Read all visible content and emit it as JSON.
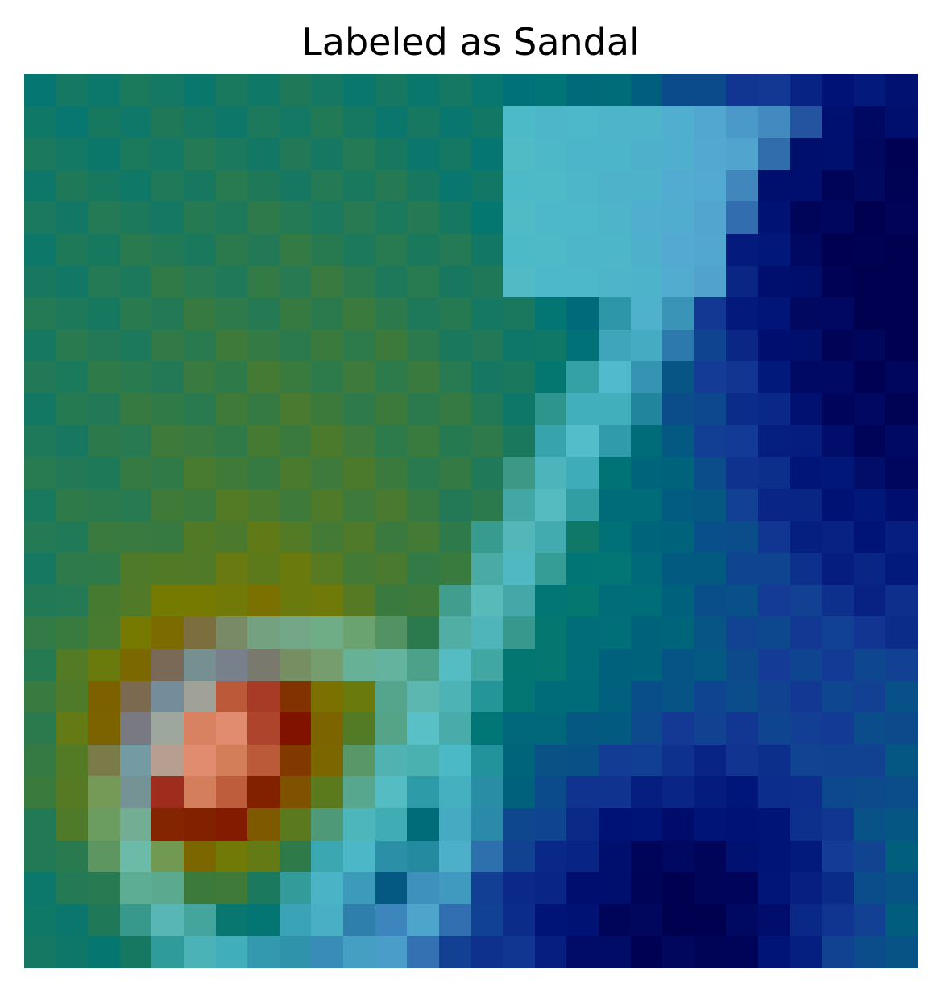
{
  "title": "Labeled as Sandal",
  "heatmap": {
    "grid": [
      28,
      28
    ],
    "colors": {
      "deep-navy": "#000050",
      "navy": "#00107a",
      "royal": "#2a55b0",
      "sky": "#6ab8ee",
      "cyan": "#70f0f0",
      "teal": "#007a78",
      "green-teal": "#207a5a",
      "olive-green": "#4a7a30",
      "olive": "#7a7a00",
      "brown": "#8a4a00",
      "dark-red": "#880000",
      "salmon": "#e09070"
    }
  }
}
